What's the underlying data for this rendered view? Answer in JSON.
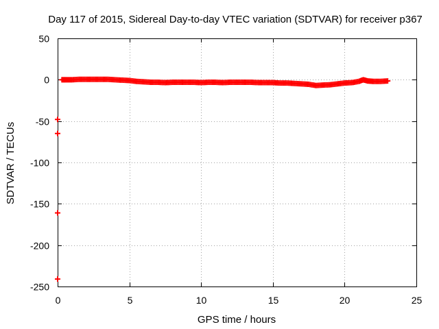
{
  "chart_data": {
    "type": "scatter",
    "title": "Day 117 of 2015, Sidereal Day-to-day VTEC variation (SDTVAR) for receiver p367",
    "xlabel": "GPS time / hours",
    "ylabel": "SDTVAR / TECUs",
    "xlim": [
      0,
      25
    ],
    "ylim": [
      -250,
      50
    ],
    "xticks": [
      "0",
      "5",
      "10",
      "15",
      "20",
      "25"
    ],
    "yticks": [
      "50",
      "0",
      "-50",
      "-100",
      "-150",
      "-200",
      "-250"
    ],
    "grid": true,
    "legend": "none",
    "marker_color": "#ff0000",
    "series": [
      {
        "x": [
          0.0,
          0.0,
          0.0,
          0.0,
          0.3,
          0.6,
          1.0,
          1.5,
          2.0,
          2.5,
          3.0,
          3.5,
          4.0,
          4.5,
          5.0,
          5.5,
          6.0,
          6.5,
          7.0,
          7.5,
          8.0,
          8.5,
          9.0,
          9.5,
          10.0,
          10.5,
          11.0,
          11.5,
          12.0,
          12.5,
          13.0,
          13.5,
          14.0,
          14.5,
          15.0,
          15.5,
          16.0,
          16.5,
          17.0,
          17.5,
          18.0,
          18.5,
          19.0,
          19.5,
          20.0,
          20.5,
          21.0,
          21.3,
          21.6,
          22.0,
          22.5,
          23.0
        ],
        "y": [
          -48,
          -65,
          -161,
          -241,
          0,
          0,
          0,
          0.5,
          0.5,
          0.5,
          0.5,
          0.5,
          0,
          -0.5,
          -1,
          -2,
          -2.5,
          -3,
          -3,
          -3.5,
          -3,
          -3,
          -3,
          -3,
          -3.5,
          -3,
          -3,
          -3.5,
          -3,
          -3,
          -3,
          -3,
          -3.5,
          -3.5,
          -3.5,
          -4,
          -4,
          -4.5,
          -5,
          -5.5,
          -7,
          -6.5,
          -6,
          -5,
          -4,
          -3.5,
          -2,
          0,
          -1.5,
          -2,
          -2,
          -1.5
        ]
      }
    ]
  }
}
